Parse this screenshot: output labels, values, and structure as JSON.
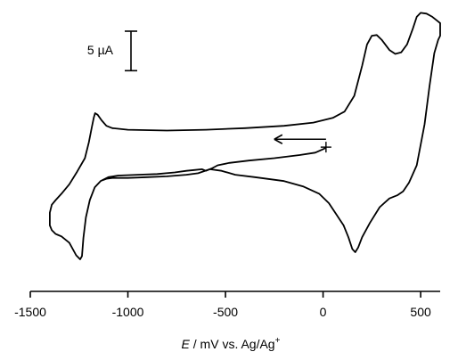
{
  "chart_data": {
    "type": "line",
    "title": "",
    "xlabel": {
      "var": "E",
      "rest": " / mV vs. Ag/Ag",
      "sup": "+"
    },
    "ylabel": "",
    "xlim": [
      -1500,
      600
    ],
    "xticks": [
      {
        "value": -1500,
        "label": "-1500"
      },
      {
        "value": -1000,
        "label": "-1000"
      },
      {
        "value": -500,
        "label": "-500"
      },
      {
        "value": 0,
        "label": "0"
      },
      {
        "value": 500,
        "label": "500"
      }
    ],
    "y_units": "µA",
    "ylim": [
      -16.8,
      18.4
    ],
    "scale_bar": {
      "value": 5,
      "label": "5 µA"
    },
    "annotations": [
      {
        "type": "arrow",
        "direction": "cathodic",
        "note": "scan start direction"
      }
    ],
    "series": [
      {
        "points": [
          [
            10,
            0.8
          ],
          [
            5,
            0.7
          ],
          [
            -40,
            0.2
          ],
          [
            -120,
            -0.1
          ],
          [
            -250,
            -0.5
          ],
          [
            -380,
            -0.8
          ],
          [
            -480,
            -1.1
          ],
          [
            -540,
            -1.4
          ],
          [
            -570,
            -1.8
          ],
          [
            -600,
            -2.1
          ],
          [
            -620,
            -1.9
          ],
          [
            -660,
            -2.0
          ],
          [
            -700,
            -2.1
          ],
          [
            -760,
            -2.3
          ],
          [
            -850,
            -2.5
          ],
          [
            -950,
            -2.6
          ],
          [
            -1050,
            -2.7
          ],
          [
            -1100,
            -2.9
          ],
          [
            -1140,
            -3.4
          ],
          [
            -1170,
            -4.2
          ],
          [
            -1195,
            -5.8
          ],
          [
            -1215,
            -8.0
          ],
          [
            -1228,
            -10.6
          ],
          [
            -1235,
            -12.9
          ],
          [
            -1245,
            -13.3
          ],
          [
            -1265,
            -12.8
          ],
          [
            -1300,
            -11.2
          ],
          [
            -1340,
            -10.4
          ],
          [
            -1360,
            -10.2
          ],
          [
            -1370,
            -10.1
          ],
          [
            -1390,
            -9.6
          ],
          [
            -1400,
            -9.0
          ],
          [
            -1400,
            -8.6
          ],
          [
            -1400,
            -7.8
          ],
          [
            -1400,
            -7.4
          ],
          [
            -1390,
            -6.4
          ],
          [
            -1370,
            -5.8
          ],
          [
            -1340,
            -5.0
          ],
          [
            -1300,
            -3.8
          ],
          [
            -1260,
            -2.2
          ],
          [
            -1220,
            -0.5
          ],
          [
            -1200,
            1.5
          ],
          [
            -1185,
            3.4
          ],
          [
            -1175,
            4.6
          ],
          [
            -1168,
            5.2
          ],
          [
            -1155,
            5.0
          ],
          [
            -1135,
            4.3
          ],
          [
            -1110,
            3.6
          ],
          [
            -1080,
            3.3
          ],
          [
            -1000,
            3.1
          ],
          [
            -800,
            3.0
          ],
          [
            -600,
            3.1
          ],
          [
            -400,
            3.3
          ],
          [
            -200,
            3.6
          ],
          [
            -50,
            4.0
          ],
          [
            50,
            4.6
          ],
          [
            110,
            5.4
          ],
          [
            160,
            7.4
          ],
          [
            200,
            11.2
          ],
          [
            225,
            13.9
          ],
          [
            250,
            15.0
          ],
          [
            275,
            15.1
          ],
          [
            300,
            14.5
          ],
          [
            340,
            13.2
          ],
          [
            370,
            12.7
          ],
          [
            400,
            12.9
          ],
          [
            430,
            13.9
          ],
          [
            460,
            15.9
          ],
          [
            480,
            17.4
          ],
          [
            500,
            17.9
          ],
          [
            530,
            17.8
          ],
          [
            560,
            17.4
          ],
          [
            590,
            16.8
          ],
          [
            600,
            16.6
          ],
          [
            600,
            16.3
          ],
          [
            600,
            15.6
          ],
          [
            600,
            15.0
          ],
          [
            590,
            14.5
          ],
          [
            570,
            12.8
          ],
          [
            545,
            8.6
          ],
          [
            520,
            3.8
          ],
          [
            480,
            -1.4
          ],
          [
            440,
            -3.6
          ],
          [
            410,
            -4.7
          ],
          [
            380,
            -5.2
          ],
          [
            340,
            -5.6
          ],
          [
            290,
            -6.7
          ],
          [
            240,
            -8.7
          ],
          [
            200,
            -10.5
          ],
          [
            180,
            -11.8
          ],
          [
            165,
            -12.4
          ],
          [
            150,
            -12.0
          ],
          [
            130,
            -10.5
          ],
          [
            105,
            -9.0
          ],
          [
            70,
            -7.7
          ],
          [
            30,
            -6.2
          ],
          [
            -20,
            -5.0
          ],
          [
            -100,
            -4.1
          ],
          [
            -200,
            -3.4
          ],
          [
            -350,
            -2.9
          ],
          [
            -450,
            -2.6
          ],
          [
            -520,
            -2.1
          ],
          [
            -580,
            -1.9
          ],
          [
            -640,
            -2.4
          ],
          [
            -700,
            -2.6
          ],
          [
            -800,
            -2.8
          ],
          [
            -900,
            -2.9
          ],
          [
            -1000,
            -3.0
          ],
          [
            -1080,
            -3.0
          ],
          [
            -1110,
            -3.1
          ],
          [
            -1130,
            -3.3
          ]
        ]
      }
    ],
    "arrow_points": [
      [
        15,
        1.9
      ],
      [
        -250,
        1.9
      ]
    ],
    "start_marker": [
      15,
      0.9
    ]
  }
}
